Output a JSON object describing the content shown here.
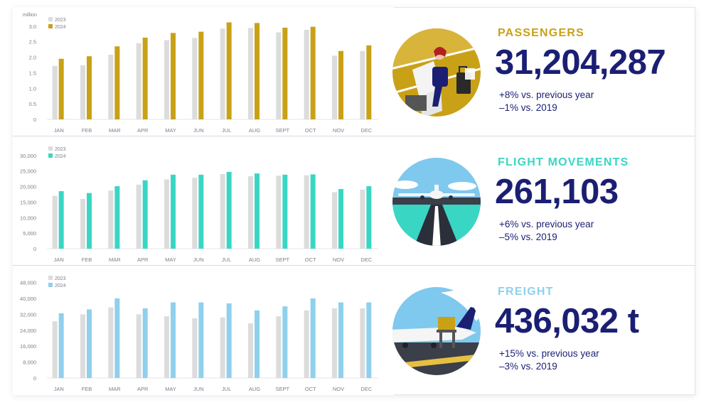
{
  "chart_data": [
    {
      "type": "bar",
      "title": "",
      "xlabel": "",
      "ylabel": "",
      "unit_label": "million",
      "categories": [
        "JAN",
        "FEB",
        "MAR",
        "APR",
        "MAY",
        "JUN",
        "JUL",
        "AUG",
        "SEPT",
        "OCT",
        "NOV",
        "DEC"
      ],
      "ylim": [
        0,
        3.2
      ],
      "yticks": [
        0,
        0.5,
        1.0,
        1.5,
        2.0,
        2.5,
        3.0
      ],
      "ytick_labels": [
        "0",
        "0.5",
        "1.0",
        "1.5",
        "2.0",
        "2.5",
        "3.0"
      ],
      "legend_placement": "top-left",
      "grid": false,
      "series": [
        {
          "name": "2023",
          "color": "#dcdcdc",
          "values": [
            1.72,
            1.74,
            2.08,
            2.45,
            2.55,
            2.62,
            2.92,
            2.94,
            2.8,
            2.88,
            2.05,
            2.2
          ]
        },
        {
          "name": "2024",
          "color": "#c9a117",
          "values": [
            1.95,
            2.03,
            2.35,
            2.63,
            2.78,
            2.82,
            3.12,
            3.1,
            2.95,
            2.98,
            2.2,
            2.38
          ]
        }
      ]
    },
    {
      "type": "bar",
      "title": "",
      "xlabel": "",
      "ylabel": "",
      "categories": [
        "JAN",
        "FEB",
        "MAR",
        "APR",
        "MAY",
        "JUN",
        "JUL",
        "AUG",
        "SEPT",
        "OCT",
        "NOV",
        "DEC"
      ],
      "ylim": [
        0,
        32000
      ],
      "yticks": [
        0,
        5000,
        10000,
        15000,
        20000,
        25000,
        30000
      ],
      "ytick_labels": [
        "0",
        "5,000",
        "10,000",
        "15,000",
        "20,000",
        "25,000",
        "30,000"
      ],
      "legend_placement": "top-left",
      "grid": false,
      "series": [
        {
          "name": "2023",
          "color": "#dcdcdc",
          "values": [
            17000,
            16000,
            18700,
            20600,
            22300,
            22800,
            24000,
            23300,
            23500,
            23600,
            18200,
            19000
          ]
        },
        {
          "name": "2024",
          "color": "#3ad6c4",
          "values": [
            18500,
            17900,
            20100,
            22000,
            23800,
            23800,
            24700,
            24200,
            23800,
            23900,
            19200,
            20100
          ]
        }
      ]
    },
    {
      "type": "bar",
      "title": "",
      "xlabel": "",
      "ylabel": "",
      "categories": [
        "JAN",
        "FEB",
        "MAR",
        "APR",
        "MAY",
        "JUN",
        "JUL",
        "AUG",
        "SEPT",
        "OCT",
        "NOV",
        "DEC"
      ],
      "ylim": [
        0,
        50000
      ],
      "yticks": [
        0,
        8000,
        16000,
        24000,
        32000,
        40000,
        48000
      ],
      "ytick_labels": [
        "0",
        "8,000",
        "16,000",
        "24,000",
        "32,000",
        "40,000",
        "48,000"
      ],
      "legend_placement": "top-left",
      "grid": false,
      "series": [
        {
          "name": "2023",
          "color": "#dcdcdc",
          "values": [
            28500,
            32000,
            35500,
            32000,
            31000,
            30000,
            30500,
            27500,
            31000,
            34000,
            35000,
            35000
          ]
        },
        {
          "name": "2024",
          "color": "#8fd0ec",
          "values": [
            32500,
            34500,
            40000,
            35000,
            38000,
            38000,
            37500,
            34000,
            36000,
            40000,
            38000,
            38000
          ]
        }
      ]
    }
  ],
  "kpis": [
    {
      "label": "PASSENGERS",
      "value": "31,204,287",
      "line1": "+8% vs. previous year",
      "line2": "–1% vs. 2019",
      "accent": "#c9a117",
      "illustration": "passenger-icon"
    },
    {
      "label": "FLIGHT MOVEMENTS",
      "value": "261,103",
      "line1": "+6% vs. previous year",
      "line2": "–5% vs. 2019",
      "accent": "#3ad6c4",
      "illustration": "airplane-runway-icon"
    },
    {
      "label": "FREIGHT",
      "value": "436,032 t",
      "line1": "+15% vs. previous year",
      "line2": "–3% vs. 2019",
      "accent": "#8fd0ec",
      "illustration": "cargo-plane-icon"
    }
  ],
  "colors": {
    "navy": "#1b1f73",
    "axis_text": "#7a7f8a",
    "divider": "#d7dbe3"
  }
}
